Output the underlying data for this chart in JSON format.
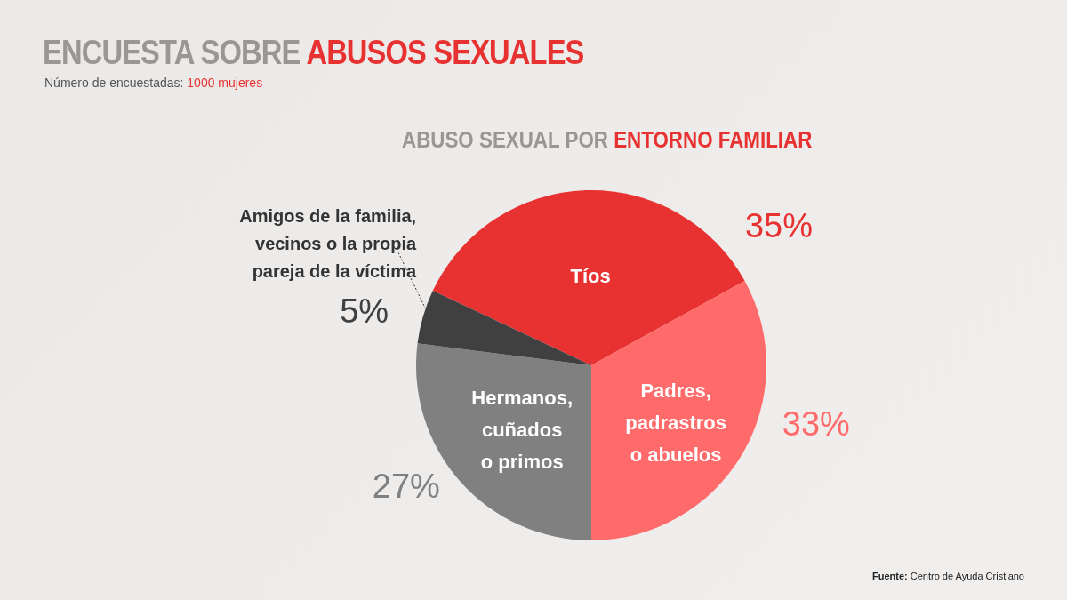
{
  "chart_data": {
    "type": "pie",
    "title": "ENCUESTA SOBRE ABUSOS SEXUALES",
    "subtitle": "Número de encuestadas: 1000 mujeres",
    "annotations": [
      "ABUSO SEXUAL POR ENTORNO FAMILIAR",
      "Fuente: Centro de Ayuda Cristiano"
    ],
    "categories": [
      "Tíos",
      "Padres, padrastros o abuelos",
      "Hermanos, cuñados o primos",
      "Amigos de la familia, vecinos o la propia pareja de la víctima"
    ],
    "values": [
      35,
      33,
      27,
      5
    ],
    "value_labels": [
      "35%",
      "33%",
      "27%",
      "5%"
    ],
    "colors": [
      "#e83232",
      "#ff6b6b",
      "#808080",
      "#404040"
    ]
  }
}
